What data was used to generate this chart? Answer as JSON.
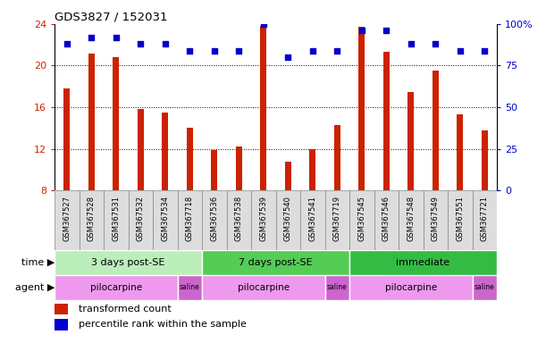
{
  "title": "GDS3827 / 152031",
  "samples": [
    "GSM367527",
    "GSM367528",
    "GSM367531",
    "GSM367532",
    "GSM367534",
    "GSM367718",
    "GSM367536",
    "GSM367538",
    "GSM367539",
    "GSM367540",
    "GSM367541",
    "GSM367719",
    "GSM367545",
    "GSM367546",
    "GSM367548",
    "GSM367549",
    "GSM367551",
    "GSM367721"
  ],
  "bar_values": [
    17.8,
    21.2,
    20.8,
    15.8,
    15.5,
    14.0,
    11.9,
    12.2,
    23.8,
    10.8,
    12.0,
    14.3,
    23.7,
    21.3,
    17.5,
    19.5,
    15.3,
    13.8
  ],
  "dot_values": [
    88,
    92,
    92,
    88,
    88,
    84,
    84,
    84,
    100,
    80,
    84,
    84,
    96,
    96,
    88,
    88,
    84,
    84
  ],
  "bar_color": "#cc2200",
  "dot_color": "#0000cc",
  "ylim_left": [
    8,
    24
  ],
  "ylim_right": [
    0,
    100
  ],
  "yticks_left": [
    8,
    12,
    16,
    20,
    24
  ],
  "yticks_right": [
    0,
    25,
    50,
    75,
    100
  ],
  "ytick_labels_right": [
    "0",
    "25",
    "50",
    "75",
    "100%"
  ],
  "time_groups": [
    {
      "label": "3 days post-SE",
      "start": 0,
      "end": 5,
      "color": "#bbeebb"
    },
    {
      "label": "7 days post-SE",
      "start": 6,
      "end": 11,
      "color": "#55cc55"
    },
    {
      "label": "immediate",
      "start": 12,
      "end": 17,
      "color": "#33bb44"
    }
  ],
  "agent_groups": [
    {
      "label": "pilocarpine",
      "start": 0,
      "end": 4,
      "color": "#ee99ee"
    },
    {
      "label": "saline",
      "start": 5,
      "end": 5,
      "color": "#cc66cc"
    },
    {
      "label": "pilocarpine",
      "start": 6,
      "end": 10,
      "color": "#ee99ee"
    },
    {
      "label": "saline",
      "start": 11,
      "end": 11,
      "color": "#cc66cc"
    },
    {
      "label": "pilocarpine",
      "start": 12,
      "end": 16,
      "color": "#ee99ee"
    },
    {
      "label": "saline",
      "start": 17,
      "end": 17,
      "color": "#cc66cc"
    }
  ],
  "legend_bar_label": "transformed count",
  "legend_dot_label": "percentile rank within the sample",
  "time_label": "time",
  "agent_label": "agent",
  "bar_width": 0.25,
  "bg_color": "#ffffff",
  "tick_label_color_left": "#cc2200",
  "tick_label_color_right": "#0000cc",
  "sample_cell_color": "#dddddd",
  "sample_cell_border": "#888888"
}
